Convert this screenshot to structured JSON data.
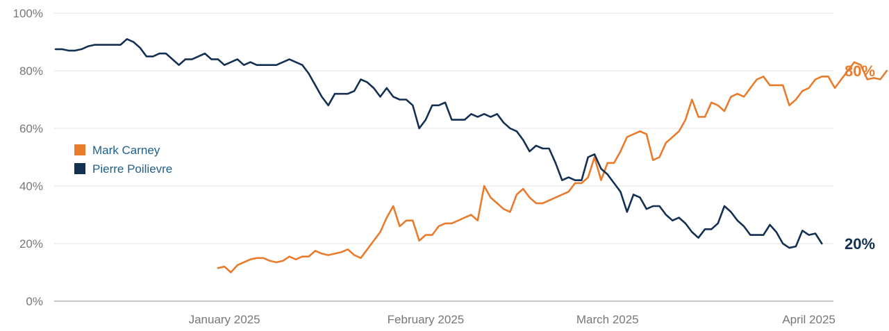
{
  "chart_data": {
    "type": "line",
    "title": "",
    "xlabel": "",
    "ylabel": "",
    "ylim": [
      0,
      100
    ],
    "xlim": [
      "2024-12-20",
      "2025-04-24"
    ],
    "y_ticks": [
      {
        "value": 0,
        "label": "0%"
      },
      {
        "value": 20,
        "label": "20%"
      },
      {
        "value": 40,
        "label": "40%"
      },
      {
        "value": 60,
        "label": "60%"
      },
      {
        "value": 80,
        "label": "80%"
      },
      {
        "value": 100,
        "label": "100%"
      }
    ],
    "x_ticks": [
      {
        "value": "2025-01-15",
        "label": "January 2025"
      },
      {
        "value": "2025-02-15",
        "label": "February 2025"
      },
      {
        "value": "2025-03-15",
        "label": "March 2025"
      },
      {
        "value": "2025-04-15",
        "label": "April 2025"
      }
    ],
    "grid": true,
    "legend_position": "left-middle",
    "end_labels": [
      {
        "series": "Mark Carney",
        "text": "80%"
      },
      {
        "series": "Pierre Poilievre",
        "text": "20%"
      }
    ],
    "series": [
      {
        "name": "Mark Carney",
        "color": "#e87b2c",
        "points": [
          [
            "2025-01-14",
            11.5
          ],
          [
            "2025-01-15",
            12
          ],
          [
            "2025-01-16",
            10
          ],
          [
            "2025-01-17",
            12.5
          ],
          [
            "2025-01-18",
            13.5
          ],
          [
            "2025-01-19",
            14.5
          ],
          [
            "2025-01-20",
            15
          ],
          [
            "2025-01-21",
            15
          ],
          [
            "2025-01-22",
            14
          ],
          [
            "2025-01-23",
            13.5
          ],
          [
            "2025-01-24",
            14
          ],
          [
            "2025-01-25",
            15.5
          ],
          [
            "2025-01-26",
            14.5
          ],
          [
            "2025-01-27",
            15.5
          ],
          [
            "2025-01-28",
            15.5
          ],
          [
            "2025-01-29",
            17.5
          ],
          [
            "2025-01-30",
            16.5
          ],
          [
            "2025-01-31",
            16
          ],
          [
            "2025-02-02",
            17
          ],
          [
            "2025-02-03",
            18
          ],
          [
            "2025-02-04",
            16
          ],
          [
            "2025-02-05",
            15
          ],
          [
            "2025-02-06",
            18
          ],
          [
            "2025-02-07",
            21
          ],
          [
            "2025-02-08",
            24
          ],
          [
            "2025-02-09",
            29
          ],
          [
            "2025-02-10",
            33
          ],
          [
            "2025-02-11",
            26
          ],
          [
            "2025-02-12",
            28
          ],
          [
            "2025-02-13",
            28
          ],
          [
            "2025-02-14",
            21
          ],
          [
            "2025-02-15",
            23
          ],
          [
            "2025-02-16",
            23
          ],
          [
            "2025-02-17",
            26
          ],
          [
            "2025-02-18",
            27
          ],
          [
            "2025-02-19",
            27
          ],
          [
            "2025-02-20",
            28
          ],
          [
            "2025-02-21",
            29
          ],
          [
            "2025-02-22",
            30
          ],
          [
            "2025-02-23",
            28
          ],
          [
            "2025-02-24",
            40
          ],
          [
            "2025-02-25",
            36
          ],
          [
            "2025-02-26",
            34
          ],
          [
            "2025-02-27",
            32
          ],
          [
            "2025-02-28",
            31
          ],
          [
            "2025-03-01",
            37
          ],
          [
            "2025-03-02",
            39
          ],
          [
            "2025-03-03",
            36
          ],
          [
            "2025-03-04",
            34
          ],
          [
            "2025-03-05",
            34
          ],
          [
            "2025-03-06",
            35
          ],
          [
            "2025-03-08",
            37
          ],
          [
            "2025-03-09",
            38
          ],
          [
            "2025-03-10",
            41
          ],
          [
            "2025-03-11",
            41
          ],
          [
            "2025-03-12",
            43
          ],
          [
            "2025-03-13",
            50
          ],
          [
            "2025-03-14",
            42
          ],
          [
            "2025-03-15",
            48
          ],
          [
            "2025-03-16",
            48
          ],
          [
            "2025-03-17",
            52
          ],
          [
            "2025-03-18",
            57
          ],
          [
            "2025-03-19",
            58
          ],
          [
            "2025-03-20",
            59
          ],
          [
            "2025-03-21",
            58
          ],
          [
            "2025-03-22",
            49
          ],
          [
            "2025-03-23",
            50
          ],
          [
            "2025-03-24",
            55
          ],
          [
            "2025-03-25",
            57
          ],
          [
            "2025-03-26",
            59
          ],
          [
            "2025-03-27",
            63
          ],
          [
            "2025-03-28",
            70
          ],
          [
            "2025-03-29",
            64
          ],
          [
            "2025-03-30",
            64
          ],
          [
            "2025-03-31",
            69
          ],
          [
            "2025-04-01",
            68
          ],
          [
            "2025-04-02",
            66
          ],
          [
            "2025-04-03",
            71
          ],
          [
            "2025-04-04",
            72
          ],
          [
            "2025-04-05",
            71
          ],
          [
            "2025-04-06",
            74
          ],
          [
            "2025-04-07",
            77
          ],
          [
            "2025-04-08",
            78
          ],
          [
            "2025-04-09",
            75
          ],
          [
            "2025-04-10",
            75
          ],
          [
            "2025-04-11",
            75
          ],
          [
            "2025-04-12",
            68
          ],
          [
            "2025-04-13",
            70
          ],
          [
            "2025-04-14",
            73
          ],
          [
            "2025-04-15",
            74
          ],
          [
            "2025-04-16",
            77
          ],
          [
            "2025-04-17",
            78
          ],
          [
            "2025-04-18",
            78
          ],
          [
            "2025-04-19",
            74
          ],
          [
            "2025-04-20",
            77
          ],
          [
            "2025-04-21",
            80
          ],
          [
            "2025-04-22",
            83
          ],
          [
            "2025-04-23",
            82
          ],
          [
            "2025-04-24",
            77
          ],
          [
            "2025-04-25",
            77.5
          ],
          [
            "2025-04-26",
            77
          ],
          [
            "2025-04-27",
            80
          ]
        ]
      },
      {
        "name": "Pierre Poilievre",
        "color": "#132f52",
        "points": [
          [
            "2024-12-20",
            87.5
          ],
          [
            "2024-12-21",
            87.5
          ],
          [
            "2024-12-22",
            87
          ],
          [
            "2024-12-23",
            87
          ],
          [
            "2024-12-24",
            87.5
          ],
          [
            "2024-12-25",
            88.5
          ],
          [
            "2024-12-26",
            89
          ],
          [
            "2024-12-27",
            89
          ],
          [
            "2024-12-28",
            89
          ],
          [
            "2024-12-29",
            89
          ],
          [
            "2024-12-30",
            89
          ],
          [
            "2024-12-31",
            91
          ],
          [
            "2025-01-01",
            90
          ],
          [
            "2025-01-02",
            88
          ],
          [
            "2025-01-03",
            85
          ],
          [
            "2025-01-04",
            85
          ],
          [
            "2025-01-05",
            86
          ],
          [
            "2025-01-06",
            86
          ],
          [
            "2025-01-07",
            84
          ],
          [
            "2025-01-08",
            82
          ],
          [
            "2025-01-09",
            84
          ],
          [
            "2025-01-10",
            84
          ],
          [
            "2025-01-11",
            85
          ],
          [
            "2025-01-12",
            86
          ],
          [
            "2025-01-13",
            84
          ],
          [
            "2025-01-14",
            84
          ],
          [
            "2025-01-15",
            82
          ],
          [
            "2025-01-16",
            83
          ],
          [
            "2025-01-17",
            84
          ],
          [
            "2025-01-18",
            82
          ],
          [
            "2025-01-19",
            83
          ],
          [
            "2025-01-20",
            82
          ],
          [
            "2025-01-21",
            82
          ],
          [
            "2025-01-22",
            82
          ],
          [
            "2025-01-23",
            82
          ],
          [
            "2025-01-24",
            83
          ],
          [
            "2025-01-25",
            84
          ],
          [
            "2025-01-26",
            83
          ],
          [
            "2025-01-27",
            82
          ],
          [
            "2025-01-28",
            79
          ],
          [
            "2025-01-29",
            75
          ],
          [
            "2025-01-30",
            71
          ],
          [
            "2025-01-31",
            68
          ],
          [
            "2025-02-01",
            72
          ],
          [
            "2025-02-02",
            72
          ],
          [
            "2025-02-03",
            72
          ],
          [
            "2025-02-04",
            73
          ],
          [
            "2025-02-05",
            77
          ],
          [
            "2025-02-06",
            76
          ],
          [
            "2025-02-07",
            74
          ],
          [
            "2025-02-08",
            71
          ],
          [
            "2025-02-09",
            74
          ],
          [
            "2025-02-10",
            71
          ],
          [
            "2025-02-11",
            70
          ],
          [
            "2025-02-12",
            70
          ],
          [
            "2025-02-13",
            68
          ],
          [
            "2025-02-14",
            60
          ],
          [
            "2025-02-15",
            63
          ],
          [
            "2025-02-16",
            68
          ],
          [
            "2025-02-17",
            68
          ],
          [
            "2025-02-18",
            69
          ],
          [
            "2025-02-19",
            63
          ],
          [
            "2025-02-20",
            63
          ],
          [
            "2025-02-21",
            63
          ],
          [
            "2025-02-22",
            65
          ],
          [
            "2025-02-23",
            64
          ],
          [
            "2025-02-24",
            65
          ],
          [
            "2025-02-25",
            64
          ],
          [
            "2025-02-26",
            65
          ],
          [
            "2025-02-27",
            62
          ],
          [
            "2025-02-28",
            60
          ],
          [
            "2025-03-01",
            59
          ],
          [
            "2025-03-02",
            56
          ],
          [
            "2025-03-03",
            52
          ],
          [
            "2025-03-04",
            54
          ],
          [
            "2025-03-05",
            53
          ],
          [
            "2025-03-06",
            53
          ],
          [
            "2025-03-07",
            48
          ],
          [
            "2025-03-08",
            42
          ],
          [
            "2025-03-09",
            43
          ],
          [
            "2025-03-10",
            42
          ],
          [
            "2025-03-11",
            42
          ],
          [
            "2025-03-12",
            50
          ],
          [
            "2025-03-13",
            51
          ],
          [
            "2025-03-14",
            46
          ],
          [
            "2025-03-15",
            44
          ],
          [
            "2025-03-16",
            41
          ],
          [
            "2025-03-17",
            38
          ],
          [
            "2025-03-18",
            31
          ],
          [
            "2025-03-19",
            37
          ],
          [
            "2025-03-20",
            36
          ],
          [
            "2025-03-21",
            32
          ],
          [
            "2025-03-22",
            33
          ],
          [
            "2025-03-23",
            33
          ],
          [
            "2025-03-24",
            30
          ],
          [
            "2025-03-25",
            28
          ],
          [
            "2025-03-26",
            29
          ],
          [
            "2025-03-27",
            27
          ],
          [
            "2025-03-28",
            24
          ],
          [
            "2025-03-29",
            22
          ],
          [
            "2025-03-30",
            25
          ],
          [
            "2025-03-31",
            25
          ],
          [
            "2025-04-01",
            27
          ],
          [
            "2025-04-02",
            33
          ],
          [
            "2025-04-03",
            31
          ],
          [
            "2025-04-04",
            28
          ],
          [
            "2025-04-05",
            26
          ],
          [
            "2025-04-06",
            23
          ],
          [
            "2025-04-07",
            23
          ],
          [
            "2025-04-08",
            23
          ],
          [
            "2025-04-09",
            26.5
          ],
          [
            "2025-04-10",
            24
          ],
          [
            "2025-04-11",
            20
          ],
          [
            "2025-04-12",
            18.5
          ],
          [
            "2025-04-13",
            19
          ],
          [
            "2025-04-14",
            24.5
          ],
          [
            "2025-04-15",
            23
          ],
          [
            "2025-04-16",
            23.5
          ],
          [
            "2025-04-17",
            20
          ]
        ]
      }
    ]
  }
}
